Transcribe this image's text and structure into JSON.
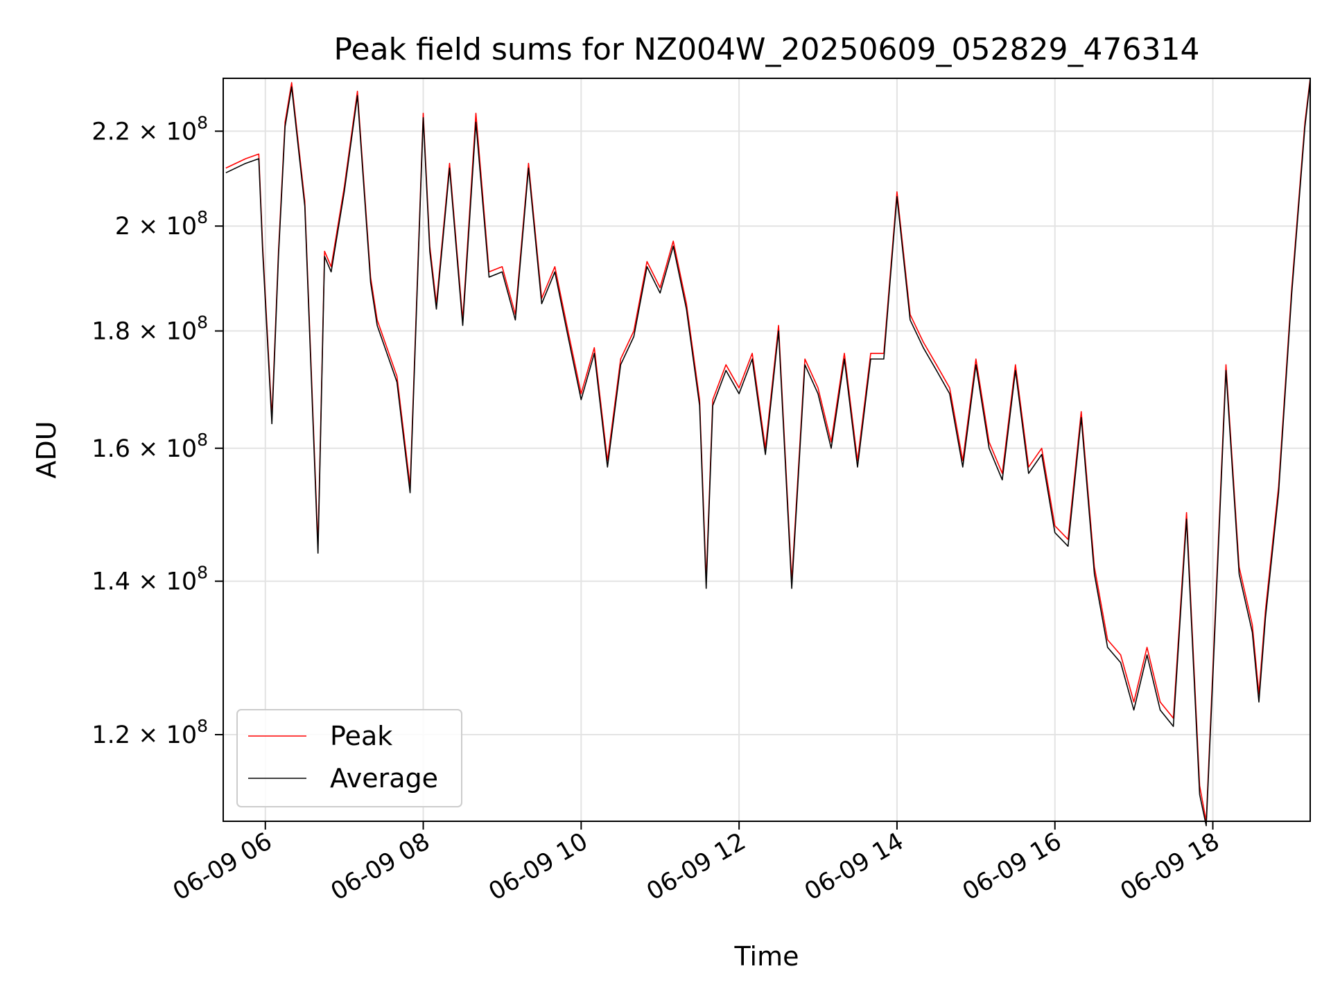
{
  "chart_data": {
    "type": "line",
    "title": "Peak field sums for NZ004W_20250609_052829_476314",
    "xlabel": "Time",
    "ylabel": "ADU",
    "yscale": "log",
    "grid": true,
    "legend_position": "lower-left",
    "x_range": [
      "06-09 05:28",
      "06-09 19:14"
    ],
    "ylim": [
      110000000,
      232000000
    ],
    "x_ticks": [
      "06-09 06",
      "06-09 08",
      "06-09 10",
      "06-09 12",
      "06-09 14",
      "06-09 16",
      "06-09 18"
    ],
    "y_ticks": [
      {
        "mantissa": "1.2",
        "exp": "8",
        "value": 120000000
      },
      {
        "mantissa": "1.4",
        "exp": "8",
        "value": 140000000
      },
      {
        "mantissa": "1.6",
        "exp": "8",
        "value": 160000000
      },
      {
        "mantissa": "1.8",
        "exp": "8",
        "value": 180000000
      },
      {
        "mantissa": "2",
        "exp": "8",
        "value": 200000000
      },
      {
        "mantissa": "2.2",
        "exp": "8",
        "value": 220000000
      }
    ],
    "x": [
      "06-09 05:30",
      "06-09 05:45",
      "06-09 05:55",
      "06-09 05:58",
      "06-09 06:05",
      "06-09 06:10",
      "06-09 06:15",
      "06-09 06:20",
      "06-09 06:30",
      "06-09 06:40",
      "06-09 06:45",
      "06-09 06:50",
      "06-09 07:00",
      "06-09 07:10",
      "06-09 07:20",
      "06-09 07:25",
      "06-09 07:40",
      "06-09 07:50",
      "06-09 08:00",
      "06-09 08:05",
      "06-09 08:10",
      "06-09 08:20",
      "06-09 08:30",
      "06-09 08:40",
      "06-09 08:50",
      "06-09 09:00",
      "06-09 09:10",
      "06-09 09:20",
      "06-09 09:30",
      "06-09 09:40",
      "06-09 09:50",
      "06-09 10:00",
      "06-09 10:10",
      "06-09 10:20",
      "06-09 10:30",
      "06-09 10:40",
      "06-09 10:50",
      "06-09 11:00",
      "06-09 11:10",
      "06-09 11:20",
      "06-09 11:30",
      "06-09 11:35",
      "06-09 11:40",
      "06-09 11:50",
      "06-09 12:00",
      "06-09 12:10",
      "06-09 12:20",
      "06-09 12:30",
      "06-09 12:40",
      "06-09 12:50",
      "06-09 13:00",
      "06-09 13:10",
      "06-09 13:20",
      "06-09 13:30",
      "06-09 13:40",
      "06-09 13:50",
      "06-09 14:00",
      "06-09 14:10",
      "06-09 14:20",
      "06-09 14:30",
      "06-09 14:40",
      "06-09 14:50",
      "06-09 15:00",
      "06-09 15:10",
      "06-09 15:20",
      "06-09 15:30",
      "06-09 15:40",
      "06-09 15:50",
      "06-09 16:00",
      "06-09 16:10",
      "06-09 16:20",
      "06-09 16:30",
      "06-09 16:40",
      "06-09 16:50",
      "06-09 17:00",
      "06-09 17:10",
      "06-09 17:20",
      "06-09 17:30",
      "06-09 17:40",
      "06-09 17:50",
      "06-09 17:55",
      "06-09 18:00",
      "06-09 18:10",
      "06-09 18:20",
      "06-09 18:30",
      "06-09 18:35",
      "06-09 18:40",
      "06-09 18:50",
      "06-09 19:00",
      "06-09 19:10",
      "06-09 19:14"
    ],
    "series": [
      {
        "name": "Peak",
        "color": "#ff0000",
        "values": [
          212000000,
          214000000,
          215000000,
          196000000,
          165000000,
          195000000,
          222000000,
          231000000,
          205000000,
          145000000,
          195000000,
          192000000,
          208000000,
          229000000,
          190000000,
          182000000,
          172000000,
          154000000,
          224000000,
          196000000,
          185000000,
          213000000,
          182000000,
          224000000,
          191000000,
          192000000,
          183000000,
          213000000,
          186000000,
          192000000,
          180000000,
          169000000,
          177000000,
          158000000,
          175000000,
          180000000,
          193000000,
          188000000,
          197000000,
          185000000,
          168000000,
          140000000,
          168000000,
          174000000,
          170000000,
          176000000,
          160000000,
          181000000,
          140000000,
          175000000,
          170000000,
          161000000,
          176000000,
          158000000,
          176000000,
          176000000,
          207000000,
          183000000,
          178000000,
          174000000,
          170000000,
          158000000,
          175000000,
          161000000,
          156000000,
          174000000,
          157000000,
          160000000,
          148000000,
          146000000,
          166000000,
          142000000,
          132000000,
          130000000,
          124000000,
          131000000,
          124000000,
          122000000,
          150000000,
          114000000,
          110000000,
          128000000,
          174000000,
          142000000,
          134000000,
          125000000,
          136000000,
          154000000,
          188000000,
          222000000,
          232000000
        ]
      },
      {
        "name": "Average",
        "color": "#000000",
        "values": [
          211000000,
          213000000,
          214000000,
          195000000,
          164000000,
          194000000,
          221000000,
          230000000,
          204000000,
          144000000,
          194000000,
          191000000,
          207000000,
          228000000,
          189000000,
          181000000,
          171000000,
          153000000,
          223000000,
          195000000,
          184000000,
          212000000,
          181000000,
          222000000,
          190000000,
          191000000,
          182000000,
          212000000,
          185000000,
          191000000,
          179000000,
          168000000,
          176000000,
          157000000,
          174000000,
          179000000,
          192000000,
          187000000,
          196000000,
          184000000,
          167000000,
          139000000,
          167000000,
          173000000,
          169000000,
          175000000,
          159000000,
          180000000,
          139000000,
          174000000,
          169000000,
          160000000,
          175000000,
          157000000,
          175000000,
          175000000,
          206000000,
          182000000,
          177000000,
          173000000,
          169000000,
          157000000,
          174000000,
          160000000,
          155000000,
          173000000,
          156000000,
          159000000,
          147000000,
          145000000,
          165000000,
          141000000,
          131000000,
          129000000,
          123000000,
          130000000,
          123000000,
          121000000,
          149000000,
          113000000,
          109500000,
          127000000,
          173000000,
          141000000,
          133000000,
          124000000,
          135000000,
          153000000,
          187000000,
          221000000,
          231500000
        ]
      }
    ]
  }
}
